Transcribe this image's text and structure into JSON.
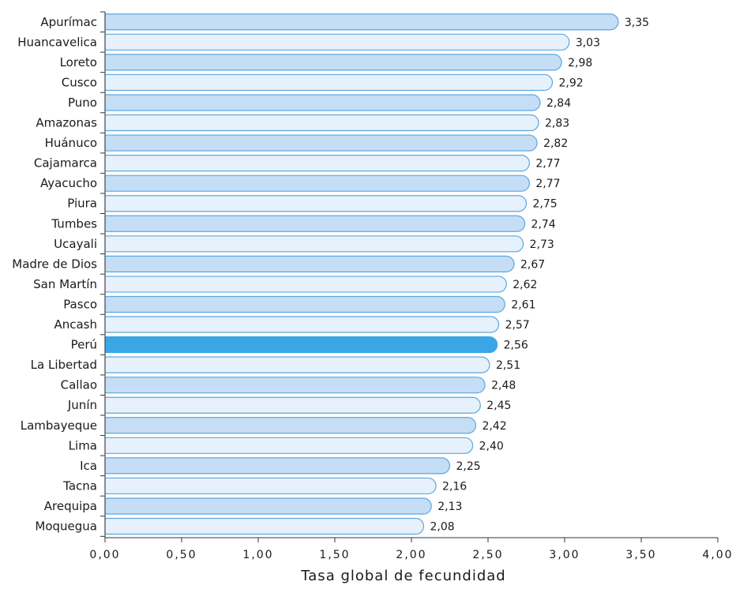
{
  "chart_data": {
    "type": "bar",
    "orientation": "horizontal",
    "xlabel": "Tasa global de fecundidad",
    "ylabel": "",
    "xlim": [
      0,
      4
    ],
    "x_ticks": [
      "0,00",
      "0,50",
      "1,00",
      "1,50",
      "2,00",
      "2,50",
      "3,00",
      "3,50",
      "4,00"
    ],
    "grid": false,
    "categories": [
      "Apurímac",
      "Huancavelica",
      "Loreto",
      "Cusco",
      "Puno",
      "Amazonas",
      "Huánuco",
      "Cajamarca",
      "Ayacucho",
      "Piura",
      "Tumbes",
      "Ucayali",
      "Madre de Dios",
      "San Martín",
      "Pasco",
      "Ancash",
      "Perú",
      "La Libertad",
      "Callao",
      "Junín",
      "Lambayeque",
      "Lima",
      "Ica",
      "Tacna",
      "Arequipa",
      "Moquegua"
    ],
    "values": [
      3.35,
      3.03,
      2.98,
      2.92,
      2.84,
      2.83,
      2.82,
      2.77,
      2.77,
      2.75,
      2.74,
      2.73,
      2.67,
      2.62,
      2.61,
      2.57,
      2.56,
      2.51,
      2.48,
      2.45,
      2.42,
      2.4,
      2.25,
      2.16,
      2.13,
      2.08
    ],
    "value_labels": [
      "3,35",
      "3,03",
      "2,98",
      "2,92",
      "2,84",
      "2,83",
      "2,82",
      "2,77",
      "2,77",
      "2,75",
      "2,74",
      "2,73",
      "2,67",
      "2,62",
      "2,61",
      "2,57",
      "2,56",
      "2,51",
      "2,48",
      "2,45",
      "2,42",
      "2,40",
      "2,25",
      "2,16",
      "2,13",
      "2,08"
    ],
    "highlight_category": "Perú",
    "colors": {
      "bar_dark": "#c5def6",
      "bar_light": "#e6f1fc",
      "bar_stroke": "#5aa7df",
      "highlight": "#3ba6e6",
      "axis": "#333333"
    }
  }
}
